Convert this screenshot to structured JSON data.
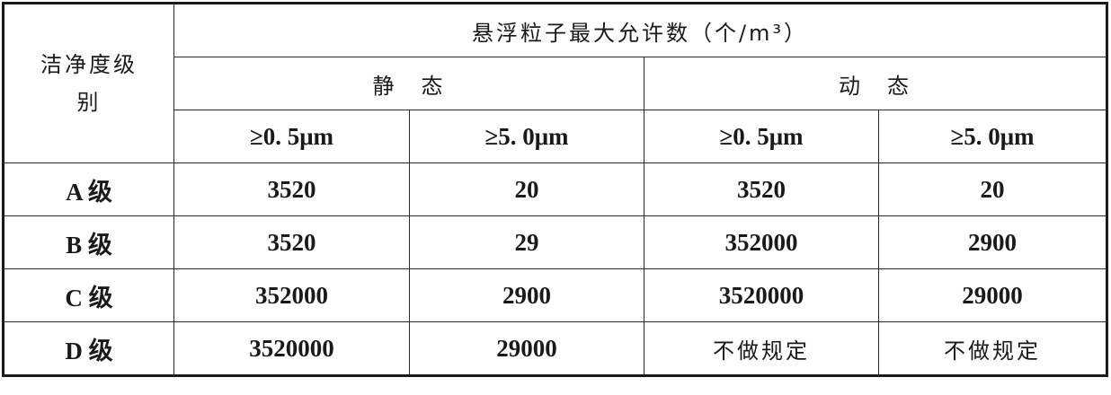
{
  "table": {
    "row_header_label": "洁净度级别",
    "group_header": "悬浮粒子最大允许数（个/m³）",
    "states": [
      "静　态",
      "动　态"
    ],
    "sizes": [
      "≥0. 5μm",
      "≥5. 0μm",
      "≥0. 5μm",
      "≥5. 0μm"
    ],
    "rows": [
      {
        "grade": "A 级",
        "values": [
          "3520",
          "20",
          "3520",
          "20"
        ]
      },
      {
        "grade": "B 级",
        "values": [
          "3520",
          "29",
          "352000",
          "2900"
        ]
      },
      {
        "grade": "C 级",
        "values": [
          "352000",
          "2900",
          "3520000",
          "29000"
        ]
      },
      {
        "grade": "D 级",
        "values": [
          "3520000",
          "29000",
          "不做规定",
          "不做规定"
        ]
      }
    ]
  }
}
